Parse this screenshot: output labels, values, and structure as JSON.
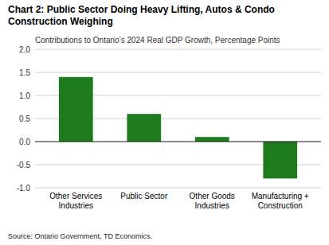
{
  "chart_data": {
    "type": "bar",
    "title": "Chart 2: Public Sector Doing Heavy Lifting, Autos & Condo\nConstruction Weighing",
    "subtitle": "Contributions to Ontario’s 2024 Real GDP Growth, Percentage Points",
    "categories": [
      "Other Services\nIndustries",
      "Public Sector",
      "Other Goods\nIndustries",
      "Manufacturing +\nConstruction"
    ],
    "values": [
      1.4,
      0.6,
      0.1,
      -0.8
    ],
    "color": "#1e7b1e",
    "ylim": [
      -1.0,
      2.0
    ],
    "yticks": [
      {
        "value": -1.0,
        "label": "-1.0"
      },
      -0.5,
      {
        "value": 0.0,
        "label": "0.0"
      },
      0.5,
      {
        "value": 1.0,
        "label": "1.0"
      },
      1.5,
      {
        "value": 2.0,
        "label": "2.0"
      }
    ],
    "grid": true,
    "annotations": [
      "Source:  Ontario Government,  TD Economics."
    ]
  }
}
